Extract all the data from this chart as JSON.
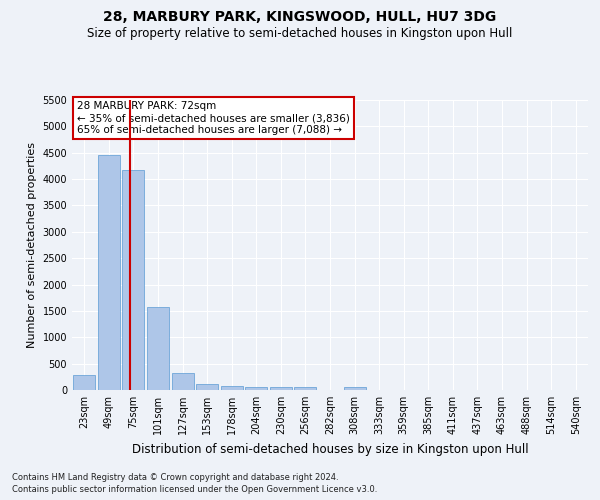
{
  "title": "28, MARBURY PARK, KINGSWOOD, HULL, HU7 3DG",
  "subtitle": "Size of property relative to semi-detached houses in Kingston upon Hull",
  "xlabel": "Distribution of semi-detached houses by size in Kingston upon Hull",
  "ylabel": "Number of semi-detached properties",
  "footnote1": "Contains HM Land Registry data © Crown copyright and database right 2024.",
  "footnote2": "Contains public sector information licensed under the Open Government Licence v3.0.",
  "annotation_title": "28 MARBURY PARK: 72sqm",
  "annotation_line1": "← 35% of semi-detached houses are smaller (3,836)",
  "annotation_line2": "65% of semi-detached houses are larger (7,088) →",
  "bar_labels": [
    "23sqm",
    "49sqm",
    "75sqm",
    "101sqm",
    "127sqm",
    "153sqm",
    "178sqm",
    "204sqm",
    "230sqm",
    "256sqm",
    "282sqm",
    "308sqm",
    "333sqm",
    "359sqm",
    "385sqm",
    "411sqm",
    "437sqm",
    "463sqm",
    "488sqm",
    "514sqm",
    "540sqm"
  ],
  "bar_values": [
    290,
    4450,
    4170,
    1570,
    330,
    120,
    75,
    65,
    60,
    55,
    5,
    55,
    0,
    0,
    0,
    0,
    0,
    0,
    0,
    0,
    0
  ],
  "bar_color": "#aec6e8",
  "bar_edge_color": "#5b9bd5",
  "vline_color": "#cc0000",
  "ylim": [
    0,
    5500
  ],
  "yticks": [
    0,
    500,
    1000,
    1500,
    2000,
    2500,
    3000,
    3500,
    4000,
    4500,
    5000,
    5500
  ],
  "bg_color": "#eef2f8",
  "grid_color": "#ffffff",
  "annotation_box_color": "#ffffff",
  "annotation_box_edge": "#cc0000",
  "title_fontsize": 10,
  "subtitle_fontsize": 8.5,
  "ylabel_fontsize": 8,
  "tick_fontsize": 7,
  "annotation_fontsize": 7.5,
  "xlabel_fontsize": 8.5,
  "footnote_fontsize": 6
}
